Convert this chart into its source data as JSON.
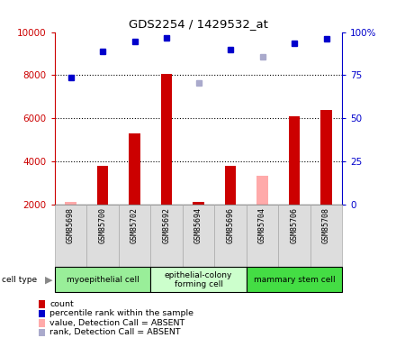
{
  "title": "GDS2254 / 1429532_at",
  "samples": [
    "GSM85698",
    "GSM85700",
    "GSM85702",
    "GSM85692",
    "GSM85694",
    "GSM85696",
    "GSM85704",
    "GSM85706",
    "GSM85708"
  ],
  "bar_values": [
    2100,
    3800,
    5300,
    8050,
    2100,
    3800,
    3350,
    6100,
    6400
  ],
  "bar_absent": [
    true,
    false,
    false,
    false,
    false,
    false,
    true,
    false,
    false
  ],
  "rank_values": [
    7900,
    9100,
    9550,
    9750,
    null,
    9200,
    null,
    9500,
    9700
  ],
  "rank_absent": [
    false,
    false,
    false,
    false,
    null,
    false,
    true,
    false,
    false
  ],
  "rank_absent_val": [
    null,
    null,
    null,
    null,
    7650,
    null,
    8850,
    null,
    null
  ],
  "ylim": [
    2000,
    10000
  ],
  "yticks": [
    2000,
    4000,
    6000,
    8000,
    10000
  ],
  "ytick_labels": [
    "2000",
    "4000",
    "6000",
    "8000",
    "10000"
  ],
  "right_yticks": [
    0,
    25,
    50,
    75,
    100
  ],
  "right_ytick_labels": [
    "0",
    "25",
    "50",
    "75",
    "100%"
  ],
  "cell_groups": [
    {
      "label": "myoepithelial cell",
      "start": 0,
      "end": 3,
      "color": "#99ee99"
    },
    {
      "label": "epithelial-colony\nforming cell",
      "start": 3,
      "end": 6,
      "color": "#ccffcc"
    },
    {
      "label": "mammary stem cell",
      "start": 6,
      "end": 9,
      "color": "#44dd44"
    }
  ],
  "bar_color_present": "#cc0000",
  "bar_color_absent": "#ffaaaa",
  "dot_color_present": "#0000cc",
  "dot_color_absent": "#aaaacc",
  "left_axis_color": "#cc0000",
  "right_axis_color": "#0000cc",
  "legend_items": [
    {
      "label": "count",
      "color": "#cc0000"
    },
    {
      "label": "percentile rank within the sample",
      "color": "#0000cc"
    },
    {
      "label": "value, Detection Call = ABSENT",
      "color": "#ffaaaa"
    },
    {
      "label": "rank, Detection Call = ABSENT",
      "color": "#aaaacc"
    }
  ]
}
